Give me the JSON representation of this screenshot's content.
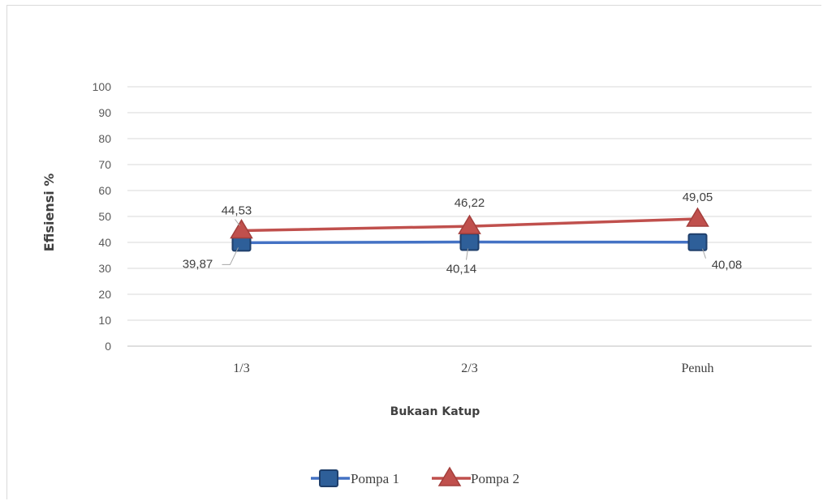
{
  "chart_data": {
    "type": "line",
    "title": "",
    "xlabel": "Bukaan Katup",
    "ylabel": "Efisiensi %",
    "categories": [
      "1/3",
      "2/3",
      "Penuh"
    ],
    "ylim": [
      0,
      100
    ],
    "yticks": [
      0,
      10,
      20,
      30,
      40,
      50,
      60,
      70,
      80,
      90,
      100
    ],
    "grid": true,
    "legend_position": "bottom",
    "series": [
      {
        "name": "Pompa 1",
        "values": [
          39.87,
          40.14,
          40.08
        ],
        "labels": [
          "39,87",
          "40,14",
          "40,08"
        ],
        "color": "#4472c4",
        "marker": "square",
        "marker_fill": "#2e5f99"
      },
      {
        "name": "Pompa 2",
        "values": [
          44.53,
          46.22,
          49.05
        ],
        "labels": [
          "44,53",
          "46,22",
          "49,05"
        ],
        "color": "#c0504d",
        "marker": "triangle",
        "marker_fill": "#c0504d"
      }
    ]
  }
}
